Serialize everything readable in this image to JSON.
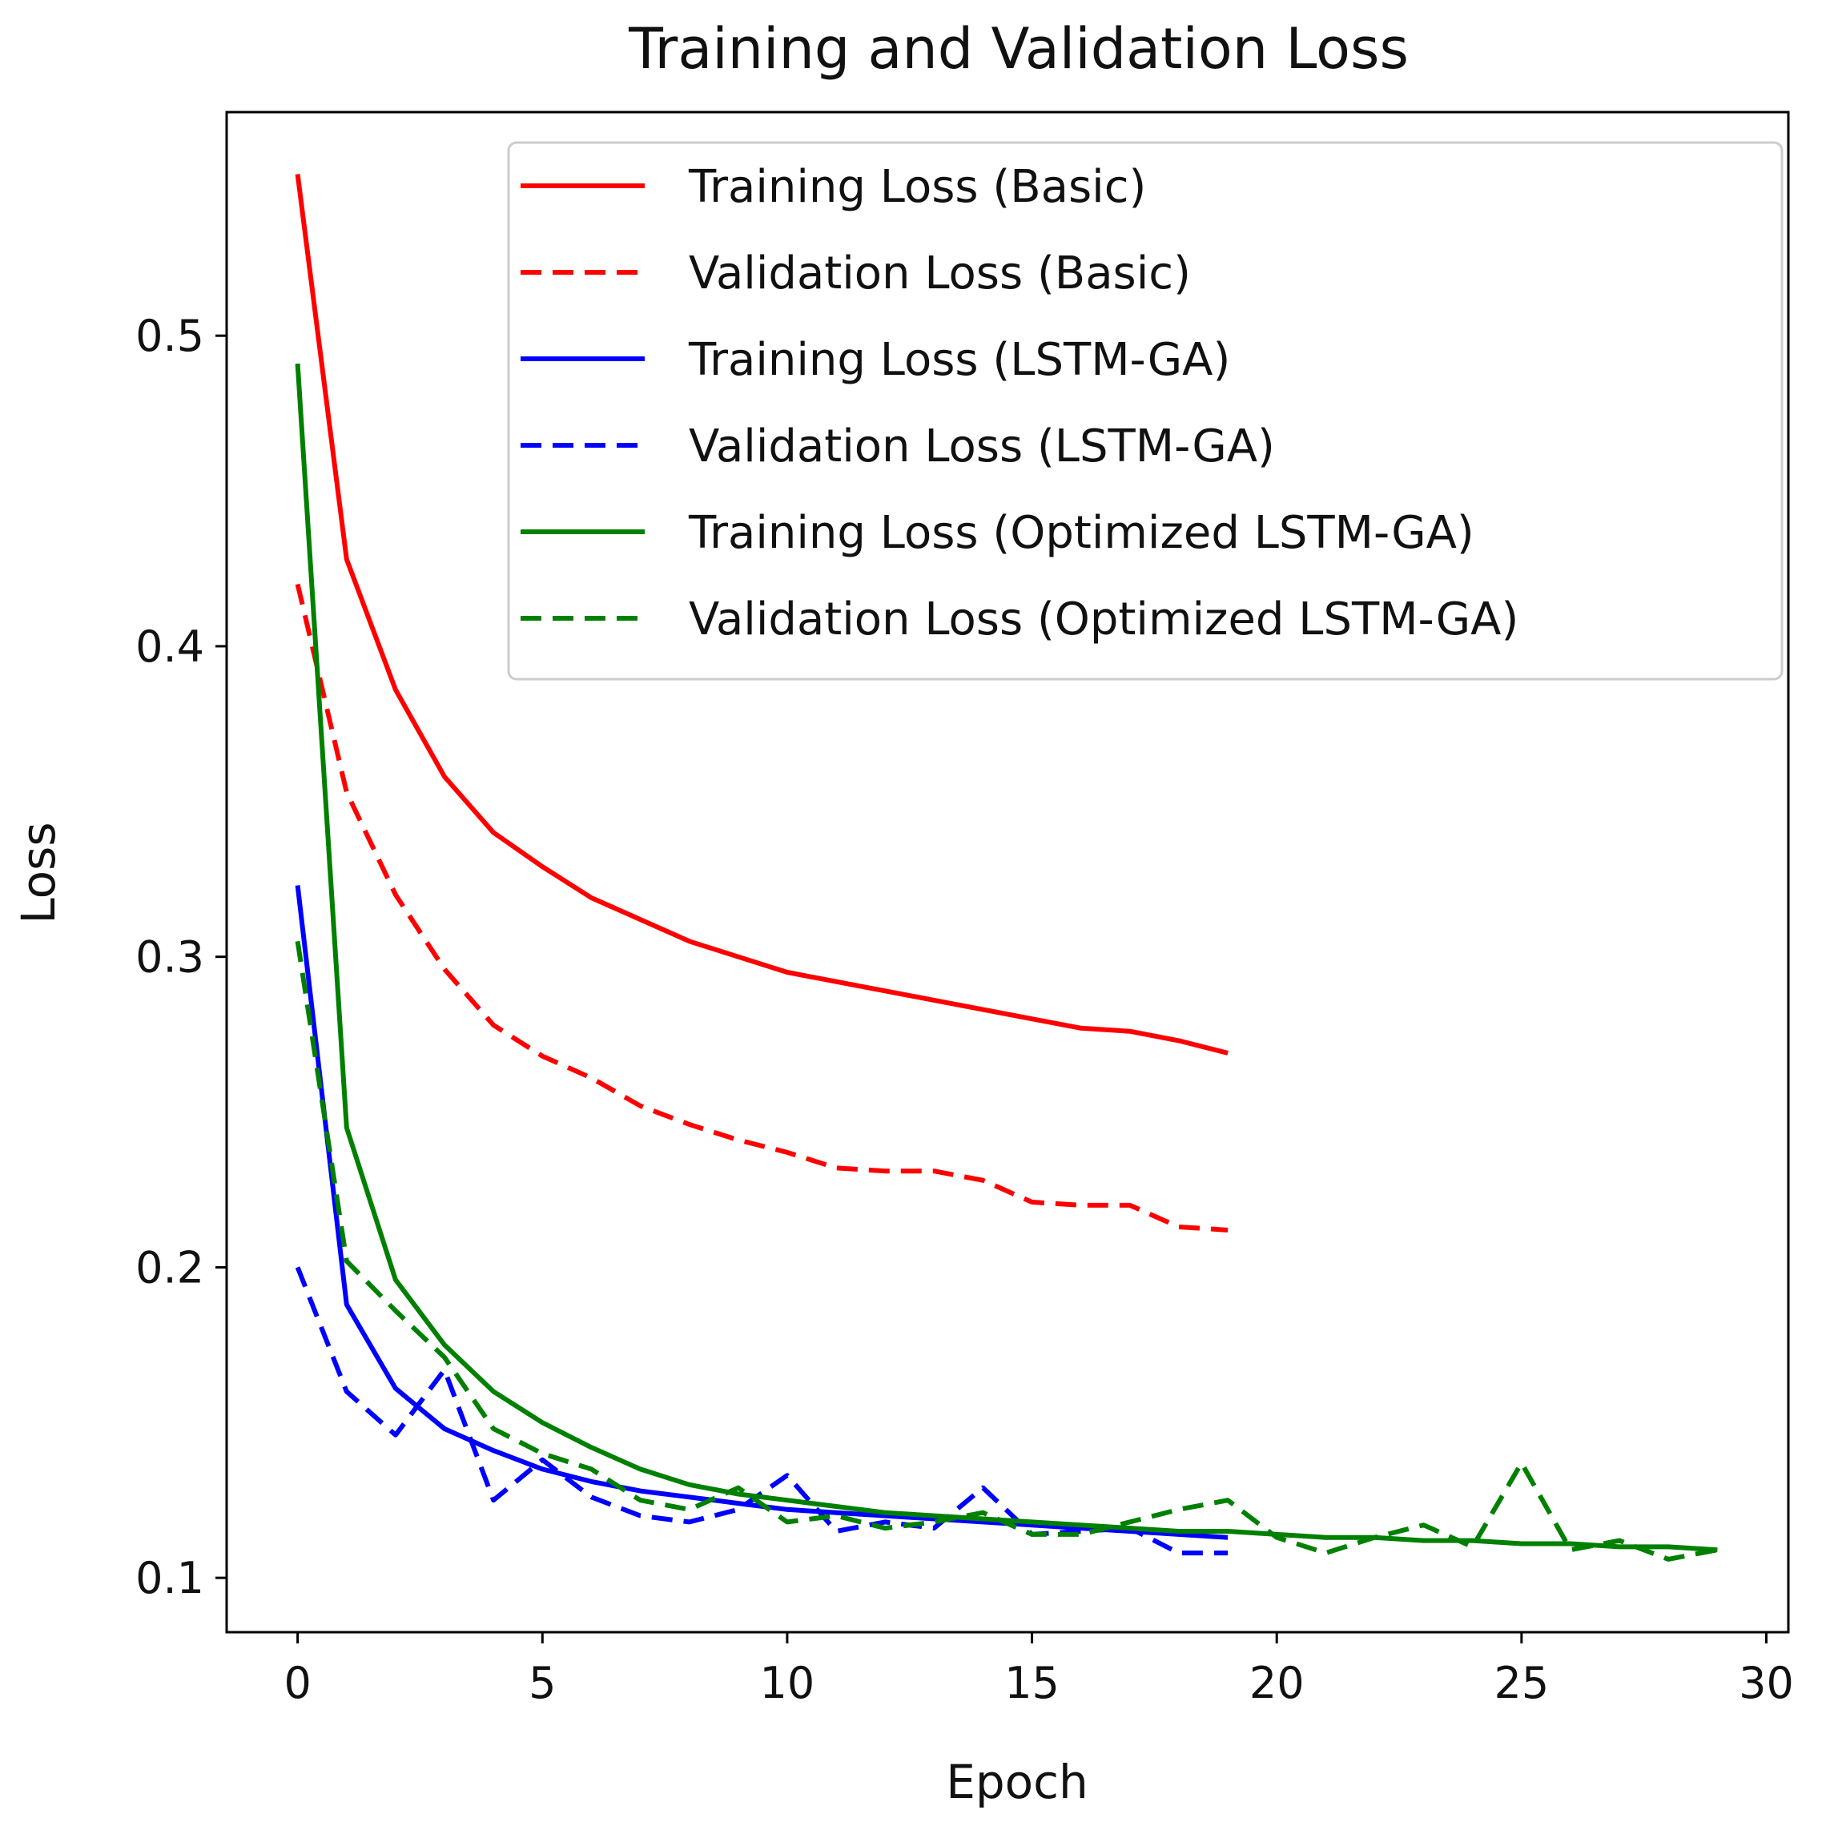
{
  "chart_data": {
    "type": "line",
    "title": "Training and Validation Loss",
    "xlabel": "Epoch",
    "ylabel": "Loss",
    "xlim": [
      -1.45,
      30.45
    ],
    "ylim": [
      0.0825,
      0.572
    ],
    "x_ticks": [
      0,
      5,
      10,
      15,
      20,
      25,
      30
    ],
    "y_ticks": [
      0.1,
      0.2,
      0.3,
      0.4,
      0.5
    ],
    "grid": false,
    "legend_position": "top-right",
    "series": [
      {
        "name": "Training Loss (Basic)",
        "color": "#ff0000",
        "style": "solid",
        "x": [
          0,
          1,
          2,
          3,
          4,
          5,
          6,
          7,
          8,
          9,
          10,
          11,
          12,
          13,
          14,
          15,
          16,
          17,
          18,
          19
        ],
        "values": [
          0.552,
          0.428,
          0.386,
          0.358,
          0.34,
          0.329,
          0.319,
          0.312,
          0.305,
          0.3,
          0.295,
          0.292,
          0.289,
          0.286,
          0.283,
          0.28,
          0.277,
          0.276,
          0.273,
          0.269
        ]
      },
      {
        "name": "Validation Loss (Basic)",
        "color": "#ff0000",
        "style": "dashed",
        "x": [
          0,
          1,
          2,
          3,
          4,
          5,
          6,
          7,
          8,
          9,
          10,
          11,
          12,
          13,
          14,
          15,
          16,
          17,
          18,
          19
        ],
        "values": [
          0.42,
          0.353,
          0.32,
          0.296,
          0.278,
          0.268,
          0.261,
          0.252,
          0.246,
          0.241,
          0.237,
          0.232,
          0.231,
          0.231,
          0.228,
          0.221,
          0.22,
          0.22,
          0.213,
          0.212
        ]
      },
      {
        "name": "Training Loss (LSTM-GA)",
        "color": "#0000ff",
        "style": "solid",
        "x": [
          0,
          1,
          2,
          3,
          4,
          5,
          6,
          7,
          8,
          9,
          10,
          11,
          12,
          13,
          14,
          15,
          16,
          17,
          18,
          19
        ],
        "values": [
          0.323,
          0.188,
          0.161,
          0.148,
          0.141,
          0.135,
          0.131,
          0.128,
          0.126,
          0.124,
          0.122,
          0.121,
          0.12,
          0.119,
          0.118,
          0.117,
          0.116,
          0.115,
          0.114,
          0.113
        ]
      },
      {
        "name": "Validation Loss (LSTM-GA)",
        "color": "#0000ff",
        "style": "dashed",
        "x": [
          0,
          1,
          2,
          3,
          4,
          5,
          6,
          7,
          8,
          9,
          10,
          11,
          12,
          13,
          14,
          15,
          16,
          17,
          18,
          19
        ],
        "values": [
          0.2,
          0.16,
          0.146,
          0.167,
          0.125,
          0.138,
          0.126,
          0.12,
          0.118,
          0.122,
          0.133,
          0.115,
          0.118,
          0.116,
          0.129,
          0.114,
          0.115,
          0.116,
          0.108,
          0.108
        ]
      },
      {
        "name": "Training Loss (Optimized LSTM-GA)",
        "color": "#008000",
        "style": "solid",
        "x": [
          0,
          1,
          2,
          3,
          4,
          5,
          6,
          7,
          8,
          9,
          10,
          11,
          12,
          13,
          14,
          15,
          16,
          17,
          18,
          19,
          20,
          21,
          22,
          23,
          24,
          25,
          26,
          27,
          28,
          29
        ],
        "values": [
          0.491,
          0.245,
          0.196,
          0.175,
          0.16,
          0.15,
          0.142,
          0.135,
          0.13,
          0.127,
          0.125,
          0.123,
          0.121,
          0.12,
          0.119,
          0.118,
          0.117,
          0.116,
          0.115,
          0.115,
          0.114,
          0.113,
          0.113,
          0.112,
          0.112,
          0.111,
          0.111,
          0.11,
          0.11,
          0.109
        ]
      },
      {
        "name": "Validation Loss (Optimized LSTM-GA)",
        "color": "#008000",
        "style": "dashed",
        "x": [
          0,
          1,
          2,
          3,
          4,
          5,
          6,
          7,
          8,
          9,
          10,
          11,
          12,
          13,
          14,
          15,
          16,
          17,
          18,
          19,
          20,
          21,
          22,
          23,
          24,
          25,
          26,
          27,
          28,
          29
        ],
        "values": [
          0.305,
          0.202,
          0.186,
          0.171,
          0.148,
          0.14,
          0.135,
          0.125,
          0.122,
          0.129,
          0.118,
          0.12,
          0.116,
          0.118,
          0.121,
          0.114,
          0.114,
          0.118,
          0.122,
          0.125,
          0.113,
          0.108,
          0.113,
          0.117,
          0.11,
          0.137,
          0.109,
          0.112,
          0.106,
          0.109
        ]
      }
    ]
  }
}
